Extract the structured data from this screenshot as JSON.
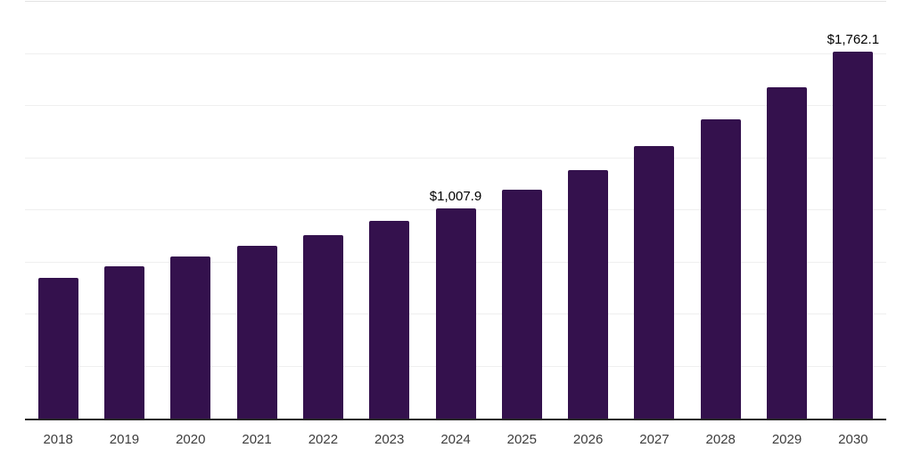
{
  "chart_data": {
    "type": "bar",
    "title": "",
    "xlabel": "",
    "ylabel": "",
    "categories": [
      "2018",
      "2019",
      "2020",
      "2021",
      "2022",
      "2023",
      "2024",
      "2025",
      "2026",
      "2027",
      "2028",
      "2029",
      "2030"
    ],
    "values": [
      675,
      731,
      779,
      827,
      879,
      948,
      1007.9,
      1097,
      1192,
      1306,
      1435,
      1588,
      1762.1
    ],
    "data_labels": [
      {
        "category": "2024",
        "text": "$1,007.9"
      },
      {
        "category": "2030",
        "text": "$1,762.1"
      }
    ],
    "ylim": [
      0,
      2000
    ],
    "gridline_interval": 250,
    "grid": true,
    "y_tick_labels_visible": false,
    "legend": "none",
    "bar_color": "#34114d",
    "axis_line_color": "#262626",
    "gridline_color": "#efefef",
    "top_gridline_color": "#e2e2e2",
    "tick_label_color": "#3d3d3d",
    "data_label_color": "#000000",
    "background_color": "#ffffff"
  }
}
